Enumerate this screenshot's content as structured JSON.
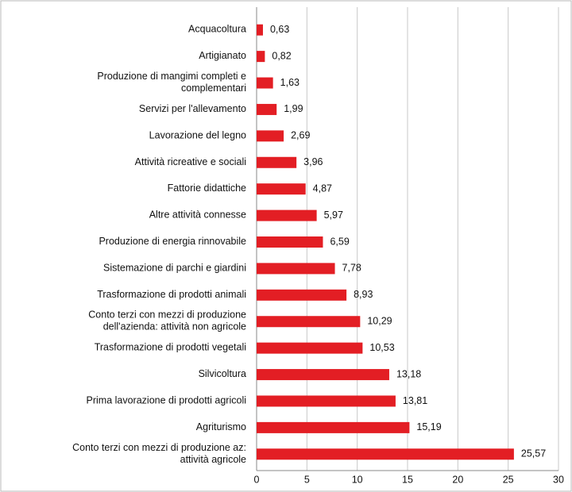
{
  "chart_data": {
    "type": "bar",
    "orientation": "horizontal",
    "categories": [
      "Acquacoltura",
      "Artigianato",
      "Produzione di mangimi completi e\ncomplementari",
      "Servizi per l'allevamento",
      "Lavorazione del legno",
      "Attività ricreative e sociali",
      "Fattorie didattiche",
      "Altre attività connesse",
      "Produzione di energia rinnovabile",
      "Sistemazione di parchi e giardini",
      "Trasformazione di prodotti animali",
      "Conto terzi con mezzi di produzione\ndell'azienda: attività non agricole",
      "Trasformazione di prodotti vegetali",
      "Silvicoltura",
      "Prima lavorazione di prodotti agricoli",
      "Agriturismo",
      "Conto terzi con mezzi di produzione az:\nattività agricole"
    ],
    "values": [
      0.63,
      0.82,
      1.63,
      1.99,
      2.69,
      3.96,
      4.87,
      5.97,
      6.59,
      7.78,
      8.93,
      10.29,
      10.53,
      13.18,
      13.81,
      15.19,
      25.57
    ],
    "value_labels": [
      "0,63",
      "0,82",
      "1,63",
      "1,99",
      "2,69",
      "3,96",
      "4,87",
      "5,97",
      "6,59",
      "7,78",
      "8,93",
      "10,29",
      "10,53",
      "13,18",
      "13,81",
      "15,19",
      "25,57"
    ],
    "color": "#e31e24",
    "xlim": [
      0,
      30
    ],
    "xticks": [
      0,
      5,
      10,
      15,
      20,
      25,
      30
    ],
    "grid": true
  }
}
